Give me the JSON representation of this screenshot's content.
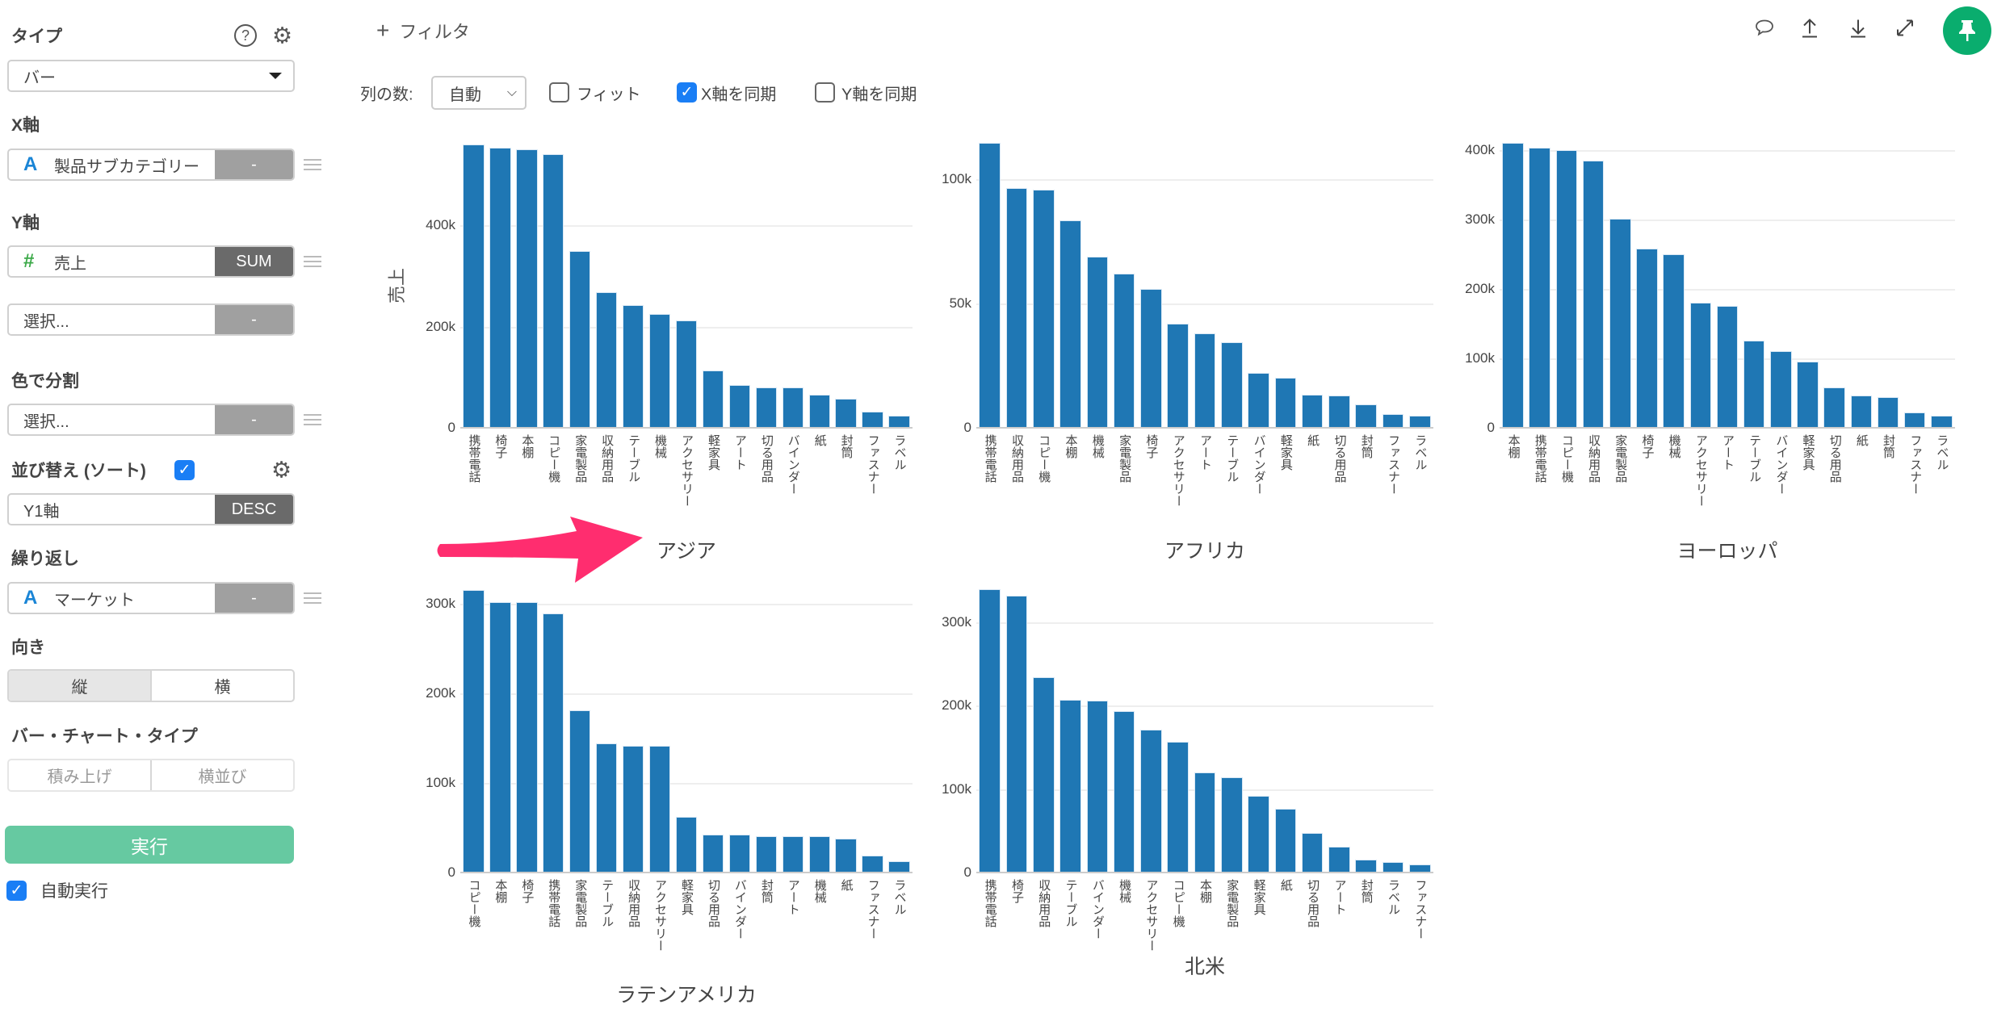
{
  "sidebar": {
    "type_label": "タイプ",
    "type_value": "バー",
    "x_axis_label": "X軸",
    "x_axis_field": "製品サブカテゴリー",
    "x_axis_btn": "-",
    "y_axis_label": "Y軸",
    "y_axis_field": "売上",
    "y_axis_agg": "SUM",
    "y_axis2_placeholder": "選択...",
    "y_axis2_btn": "-",
    "color_label": "色で分割",
    "color_placeholder": "選択...",
    "color_btn": "-",
    "sort_label": "並び替え (ソート)",
    "sort_field": "Y1軸",
    "sort_order": "DESC",
    "repeat_label": "繰り返し",
    "repeat_field": "マーケット",
    "repeat_btn": "-",
    "orientation_label": "向き",
    "orientation_options": [
      "縦",
      "横"
    ],
    "bar_type_label": "バー・チャート・タイプ",
    "bar_type_options": [
      "積み上げ",
      "横並び"
    ],
    "run_label": "実行",
    "auto_run_label": "自動実行"
  },
  "toolbar": {
    "filter_label": "フィルタ",
    "columns_label": "列の数:",
    "columns_value": "自動",
    "fit_label": "フィット",
    "sync_x_label": "X軸を同期",
    "sync_y_label": "Y軸を同期"
  },
  "colors": {
    "bar": "#1f77b4",
    "run": "#66c9a1",
    "pin": "#0aad6e",
    "arrow": "#ff2d6f",
    "check": "#1a7ef5"
  },
  "chart_data": [
    {
      "type": "bar",
      "title": "アジア",
      "ylabel": "売上",
      "ylim": [
        0,
        574000
      ],
      "yticks": [
        0,
        200000,
        400000
      ],
      "ytick_labels": [
        "0",
        "200k",
        "400k"
      ],
      "categories": [
        "携帯電話",
        "椅子",
        "本棚",
        "コピー機",
        "家電製品",
        "収納用品",
        "テーブル",
        "機械",
        "アクセサリー",
        "軽家具",
        "アート",
        "切る用品",
        "バインダー",
        "紙",
        "封筒",
        "ファスナー",
        "ラベル"
      ],
      "values": [
        559000,
        553000,
        550000,
        540000,
        349000,
        268000,
        243000,
        225000,
        212000,
        114000,
        85000,
        80000,
        79000,
        65000,
        58000,
        32000,
        24000
      ]
    },
    {
      "type": "bar",
      "title": "アフリカ",
      "ylabel": "",
      "ylim": [
        0,
        116900
      ],
      "yticks": [
        0,
        50000,
        100000
      ],
      "ytick_labels": [
        "0",
        "50k",
        "100k"
      ],
      "categories": [
        "携帯電話",
        "収納用品",
        "コピー機",
        "本棚",
        "機械",
        "家電製品",
        "椅子",
        "アクセサリー",
        "アート",
        "テーブル",
        "バインダー",
        "軽家具",
        "紙",
        "切る用品",
        "封筒",
        "ファスナー",
        "ラベル"
      ],
      "values": [
        114600,
        96400,
        95900,
        83300,
        68800,
        61900,
        55800,
        41900,
        38100,
        34300,
        22100,
        20300,
        13400,
        13100,
        9400,
        5600,
        4800
      ]
    },
    {
      "type": "bar",
      "title": "ヨーロッパ",
      "ylabel": "",
      "ylim": [
        0,
        418600
      ],
      "yticks": [
        0,
        100000,
        200000,
        300000,
        400000
      ],
      "ytick_labels": [
        "0",
        "100k",
        "200k",
        "300k",
        "400k"
      ],
      "categories": [
        "本棚",
        "携帯電話",
        "コピー機",
        "収納用品",
        "家電製品",
        "椅子",
        "機械",
        "アクセサリー",
        "アート",
        "テーブル",
        "バインダー",
        "軽家具",
        "切る用品",
        "紙",
        "封筒",
        "ファスナー",
        "ラベル"
      ],
      "values": [
        410000,
        404000,
        400000,
        385000,
        301000,
        258000,
        250000,
        180000,
        176000,
        126000,
        110000,
        95000,
        58000,
        47000,
        44000,
        22000,
        17000
      ]
    },
    {
      "type": "bar",
      "title": "ラテンアメリカ",
      "ylabel": "",
      "ylim": [
        0,
        323000
      ],
      "yticks": [
        0,
        100000,
        200000,
        300000
      ],
      "ytick_labels": [
        "0",
        "100k",
        "200k",
        "300k"
      ],
      "categories": [
        "コピー機",
        "本棚",
        "椅子",
        "携帯電話",
        "家電製品",
        "テーブル",
        "収納用品",
        "アクセサリー",
        "軽家具",
        "切る用品",
        "バインダー",
        "封筒",
        "アート",
        "機械",
        "紙",
        "ファスナー",
        "ラベル"
      ],
      "values": [
        315000,
        301500,
        301500,
        289000,
        181000,
        144000,
        141500,
        141000,
        62000,
        42600,
        42600,
        40800,
        40800,
        40500,
        37700,
        18800,
        13000
      ]
    },
    {
      "type": "bar",
      "title": "北米",
      "ylabel": "",
      "ylim": [
        0,
        347000
      ],
      "yticks": [
        0,
        100000,
        200000,
        300000
      ],
      "ytick_labels": [
        "0",
        "100k",
        "200k",
        "300k"
      ],
      "categories": [
        "携帯電話",
        "椅子",
        "収納用品",
        "テーブル",
        "バインダー",
        "機械",
        "アクセサリー",
        "コピー機",
        "本棚",
        "家電製品",
        "軽家具",
        "紙",
        "切る用品",
        "アート",
        "封筒",
        "ラベル",
        "ファスナー"
      ],
      "values": [
        339000,
        331500,
        233500,
        207000,
        206000,
        193000,
        171000,
        156500,
        120000,
        114000,
        91700,
        76700,
        47500,
        30600,
        15000,
        12300,
        9300
      ]
    }
  ]
}
